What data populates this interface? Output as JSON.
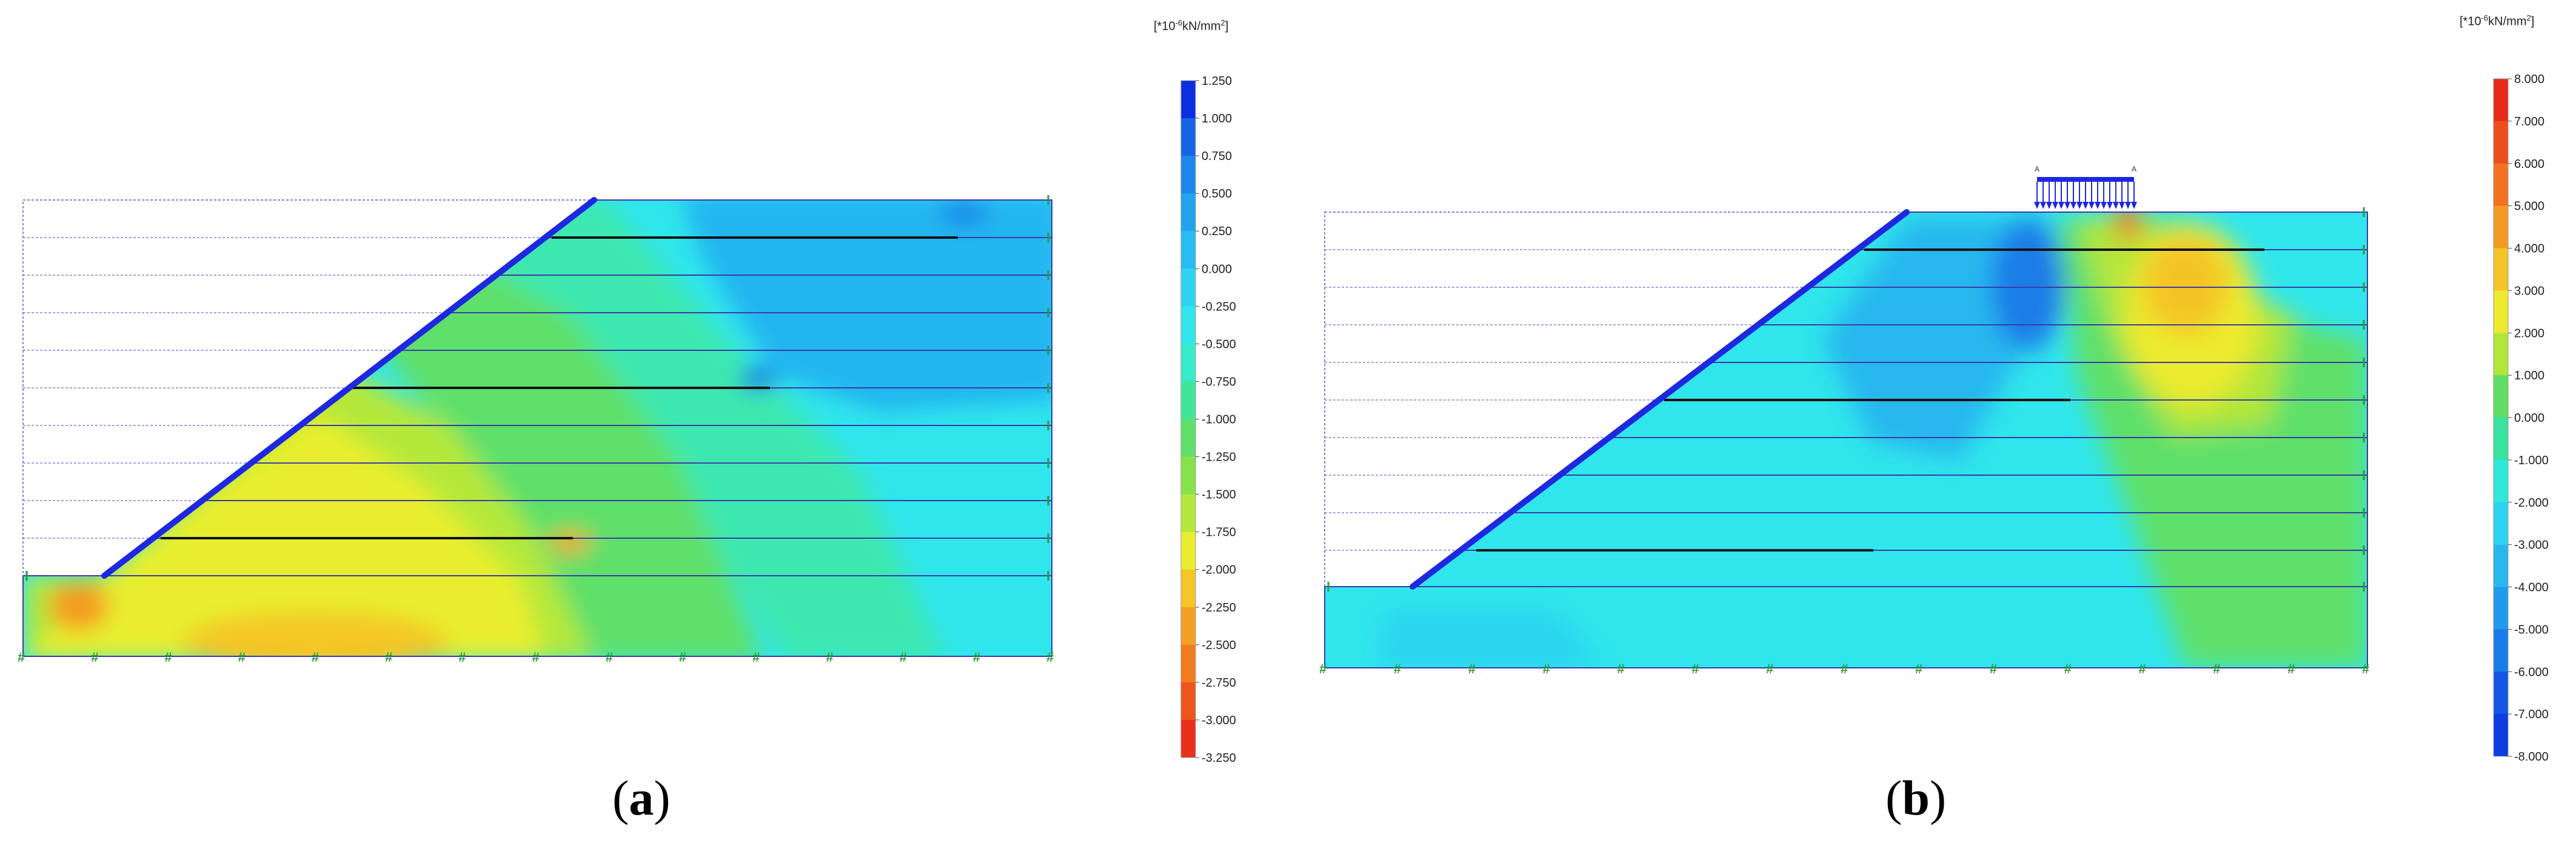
{
  "figure": {
    "panels": [
      {
        "id": "a",
        "caption_letter": "a",
        "caption_open": "(",
        "caption_close": ")",
        "unit_prefix": "[*10",
        "unit_exp": "-6",
        "unit_mid": "kN/mm",
        "unit_pow": "2",
        "unit_close": "]",
        "legend_ticks": [
          "1.250",
          "1.000",
          "0.750",
          "0.500",
          "0.250",
          "0.000",
          "-0.250",
          "-0.500",
          "-0.750",
          "-1.000",
          "-1.250",
          "-1.500",
          "-1.750",
          "-2.000",
          "-2.250",
          "-2.500",
          "-2.750",
          "-3.000",
          "-3.250"
        ],
        "legend_colors": [
          "#0a2fe0",
          "#1664e6",
          "#1e86ea",
          "#22a3ee",
          "#28bdf0",
          "#2fd4f2",
          "#30e6ec",
          "#36ecc9",
          "#3fe69a",
          "#5ee06a",
          "#86e24a",
          "#b4e83a",
          "#e8ee2e",
          "#f4c628",
          "#f4a024",
          "#f27c20",
          "#ee541c",
          "#e8301a",
          "#e01818"
        ]
      },
      {
        "id": "b",
        "caption_letter": "b",
        "caption_open": "(",
        "caption_close": ")",
        "unit_prefix": "[*10",
        "unit_exp": "-6",
        "unit_mid": "kN/mm",
        "unit_pow": "2",
        "unit_close": "]",
        "load_marker_labels": [
          "A",
          "A"
        ],
        "legend_ticks": [
          "8.000",
          "7.000",
          "6.000",
          "5.000",
          "4.000",
          "3.000",
          "2.000",
          "1.000",
          "0.000",
          "-1.000",
          "-2.000",
          "-3.000",
          "-4.000",
          "-5.000",
          "-6.000",
          "-7.000",
          "-8.000"
        ],
        "legend_colors": [
          "#e82a1a",
          "#ee4e1c",
          "#f27220",
          "#f49a24",
          "#f4c428",
          "#ecea2e",
          "#b2e63a",
          "#5ede62",
          "#38e2a0",
          "#2ee8dc",
          "#2cd4f0",
          "#28b8ee",
          "#209aea",
          "#1a7ce8",
          "#1258e4",
          "#0c3ce2",
          "#0624e0"
        ]
      }
    ]
  }
}
